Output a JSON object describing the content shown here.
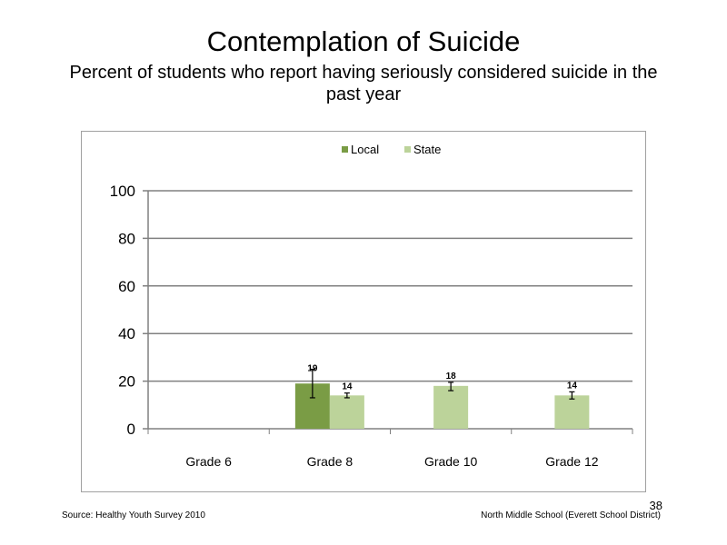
{
  "slide": {
    "title": "Contemplation  of Suicide",
    "subtitle": "Percent of students who report having seriously considered suicide in the past year",
    "source": "Source: Healthy Youth Survey 2010",
    "school": "North Middle  School (Everett School District)",
    "page_number": "38"
  },
  "chart_data": {
    "type": "bar",
    "categories": [
      "Grade 6",
      "Grade 8",
      "Grade 10",
      "Grade 12"
    ],
    "series": [
      {
        "name": "Local",
        "color": "#7a9c45",
        "values": [
          null,
          19,
          null,
          null
        ],
        "error_low": [
          null,
          13,
          null,
          null
        ],
        "error_high": [
          null,
          25,
          null,
          null
        ]
      },
      {
        "name": "State",
        "color": "#bcd39a",
        "values": [
          null,
          14,
          18,
          14
        ],
        "error_low": [
          null,
          13,
          16,
          12.5
        ],
        "error_high": [
          null,
          15,
          19.5,
          15.5
        ]
      }
    ],
    "ylim": [
      0,
      100
    ],
    "yticks": [
      0,
      20,
      40,
      60,
      80,
      100
    ],
    "ylabel": "",
    "xlabel": "",
    "grid": true,
    "legend_position": "top"
  }
}
